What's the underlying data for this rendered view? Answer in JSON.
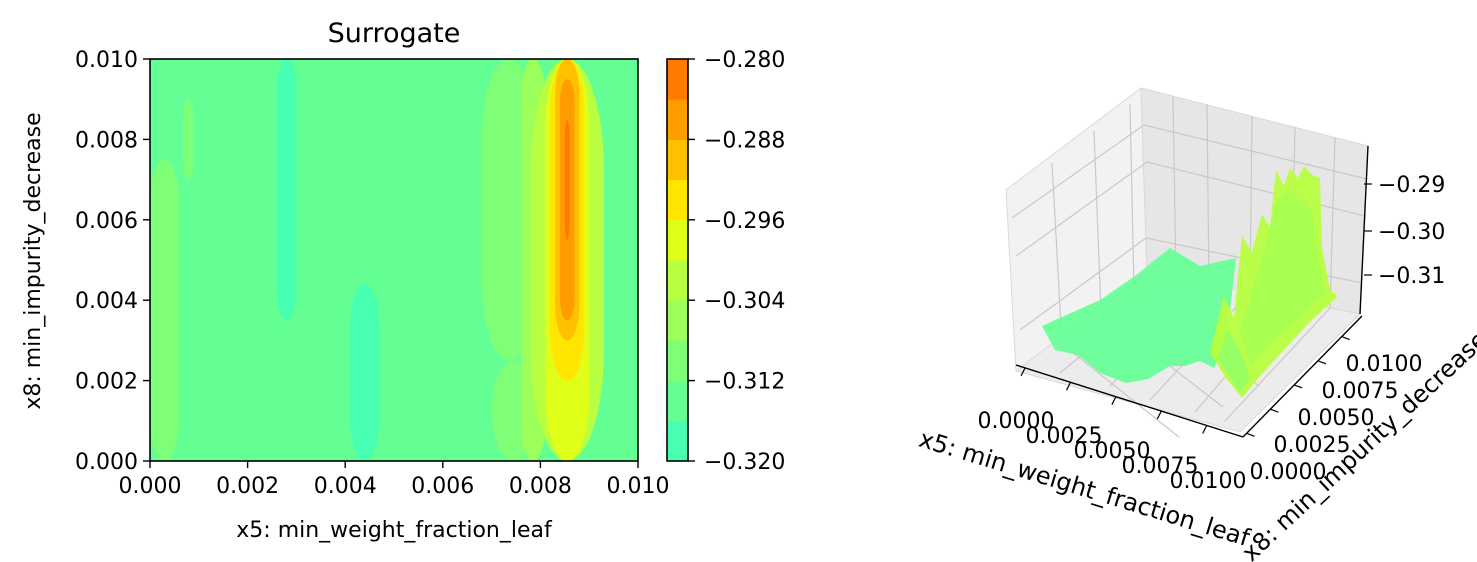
{
  "chart_data": [
    {
      "type": "contour",
      "title": "Surrogate",
      "xlabel": "x5: min_weight_fraction_leaf",
      "ylabel": "x8: min_impurity_decrease",
      "xlim": [
        0.0,
        0.01
      ],
      "ylim": [
        0.0,
        0.01
      ],
      "xticks": [
        "0.000",
        "0.002",
        "0.004",
        "0.006",
        "0.008",
        "0.010"
      ],
      "yticks": [
        "0.000",
        "0.002",
        "0.004",
        "0.006",
        "0.008",
        "0.010"
      ],
      "colorbar": {
        "levels": [
          -0.32,
          -0.316,
          -0.312,
          -0.308,
          -0.304,
          -0.3,
          -0.296,
          -0.292,
          -0.288,
          -0.284,
          -0.28
        ],
        "tick_labels": [
          "−0.280",
          "−0.288",
          "−0.296",
          "−0.304",
          "−0.312",
          "−0.320"
        ],
        "colors": [
          "#47ffb0",
          "#63ff94",
          "#7fff78",
          "#9bff5c",
          "#b7ff40",
          "#e0ff18",
          "#ffe500",
          "#ffc000",
          "#ff9d00",
          "#ff7a00"
        ]
      },
      "regions": [
        {
          "level": 2,
          "x0": 0.0,
          "x1": 0.0006,
          "y0": 0.0,
          "y1": 0.0075
        },
        {
          "level": 2,
          "x0": 0.00068,
          "x1": 0.0009,
          "y0": 0.007,
          "y1": 0.009
        },
        {
          "level": 0,
          "x0": 0.0026,
          "x1": 0.003,
          "y0": 0.0035,
          "y1": 0.01
        },
        {
          "level": 0,
          "x0": 0.0041,
          "x1": 0.0047,
          "y0": 0.0,
          "y1": 0.0044
        },
        {
          "level": 2,
          "x0": 0.0068,
          "x1": 0.0079,
          "y0": 0.0025,
          "y1": 0.01
        },
        {
          "level": 2,
          "x0": 0.007,
          "x1": 0.0079,
          "y0": 0.0,
          "y1": 0.0025
        },
        {
          "level": 3,
          "x0": 0.0076,
          "x1": 0.0081,
          "y0": 0.0,
          "y1": 0.01
        },
        {
          "level": 4,
          "x0": 0.0078,
          "x1": 0.0093,
          "y0": 0.0,
          "y1": 0.01
        },
        {
          "level": 5,
          "x0": 0.0081,
          "x1": 0.009,
          "y0": 0.0,
          "y1": 0.01
        },
        {
          "level": 6,
          "x0": 0.0082,
          "x1": 0.0089,
          "y0": 0.002,
          "y1": 0.01
        },
        {
          "level": 7,
          "x0": 0.0083,
          "x1": 0.0088,
          "y0": 0.003,
          "y1": 0.01
        },
        {
          "level": 8,
          "x0": 0.0084,
          "x1": 0.0087,
          "y0": 0.0035,
          "y1": 0.0095
        },
        {
          "level": 9,
          "x0": 0.0085,
          "x1": 0.0086,
          "y0": 0.0055,
          "y1": 0.0085
        }
      ]
    },
    {
      "type": "surface3d",
      "xlabel": "x5: min_weight_fraction_leaf",
      "ylabel": "x8: min_impurity_decrease",
      "x_tick_labels": [
        "0.0000",
        "0.0025",
        "0.0050",
        "0.0075",
        "0.0100"
      ],
      "y_tick_labels": [
        "0.0000",
        "0.0025",
        "0.0050",
        "0.0075",
        "0.0100"
      ],
      "z_tick_labels": [
        "−0.29",
        "−0.30",
        "−0.31"
      ],
      "zlim": [
        -0.32,
        -0.285
      ]
    }
  ]
}
